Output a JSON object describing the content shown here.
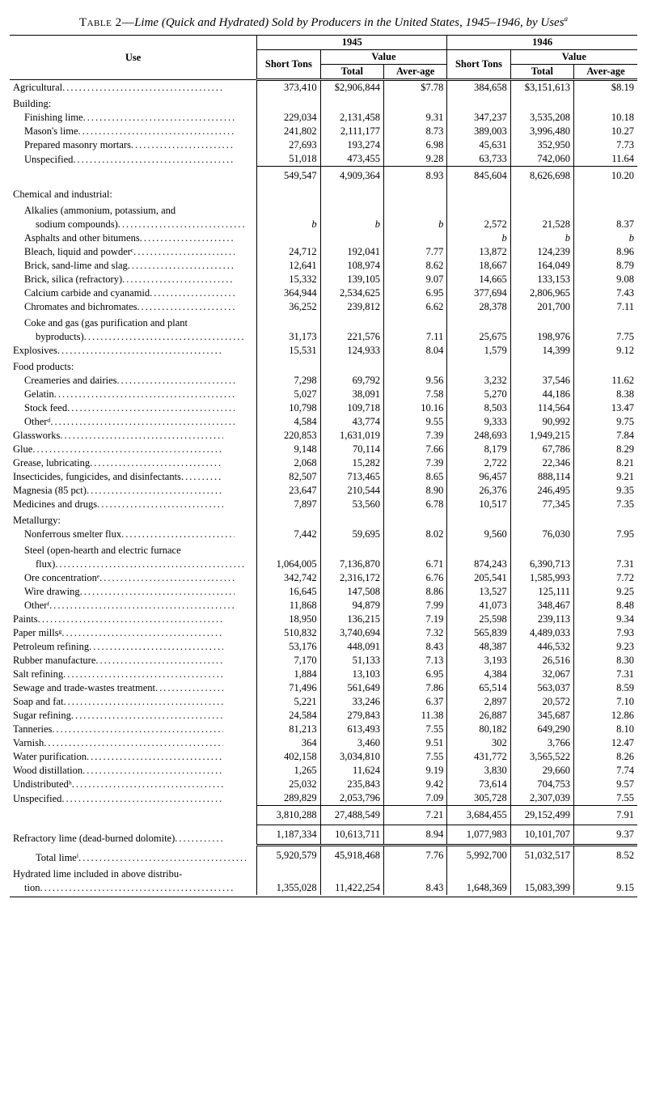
{
  "title": {
    "prefix": "Table 2—",
    "main": "Lime (Quick and Hydrated) Sold by Producers in the United States, 1945–1946, by Uses",
    "sup": "a"
  },
  "header": {
    "use": "Use",
    "y1945": "1945",
    "y1946": "1946",
    "short_tons": "Short Tons",
    "value": "Value",
    "total": "Total",
    "average": "Aver-age"
  },
  "rows": [
    {
      "label": "Agricultural",
      "indent": 0,
      "dots": true,
      "t45": "373,410",
      "v45": "$2,906,844",
      "a45": "$7.78",
      "t46": "384,658",
      "v46": "$3,151,613",
      "a46": "$8.19",
      "dtop": true
    },
    {
      "label": "Building:",
      "indent": 0,
      "dots": false,
      "head": true
    },
    {
      "label": "Finishing lime",
      "indent": 1,
      "dots": true,
      "t45": "229,034",
      "v45": "2,131,458",
      "a45": "9.31",
      "t46": "347,237",
      "v46": "3,535,208",
      "a46": "10.18"
    },
    {
      "label": "Mason's lime",
      "indent": 1,
      "dots": true,
      "t45": "241,802",
      "v45": "2,111,177",
      "a45": "8.73",
      "t46": "389,003",
      "v46": "3,996,480",
      "a46": "10.27"
    },
    {
      "label": "Prepared masonry mortars",
      "indent": 1,
      "dots": true,
      "t45": "27,693",
      "v45": "193,274",
      "a45": "6.98",
      "t46": "45,631",
      "v46": "352,950",
      "a46": "7.73"
    },
    {
      "label": "Unspecified",
      "indent": 1,
      "dots": true,
      "t45": "51,018",
      "v45": "473,455",
      "a45": "9.28",
      "t46": "63,733",
      "v46": "742,060",
      "a46": "11.64"
    },
    {
      "label": "",
      "indent": 0,
      "t45": "549,547",
      "v45": "4,909,364",
      "a45": "8.93",
      "t46": "845,604",
      "v46": "8,626,698",
      "a46": "10.20",
      "totline": true
    },
    {
      "label": "Chemical and industrial:",
      "indent": 0,
      "dots": false,
      "head": true
    },
    {
      "label": "Alkalies (ammonium, potassium, and",
      "indent": 1,
      "dots": false,
      "nowrap": false,
      "head": true
    },
    {
      "label": "sodium compounds)",
      "indent": 2,
      "dots": true,
      "t45": "b",
      "v45": "b",
      "a45": "b",
      "t46": "2,572",
      "v46": "21,528",
      "a46": "8.37",
      "fn45": true
    },
    {
      "label": "Asphalts and other bitumens",
      "indent": 1,
      "dots": true,
      "t45": "",
      "v45": "",
      "a45": "",
      "t46": "b",
      "v46": "b",
      "a46": "b",
      "fn46": true
    },
    {
      "label": "Bleach, liquid and powderᶜ",
      "indent": 1,
      "dots": true,
      "t45": "24,712",
      "v45": "192,041",
      "a45": "7.77",
      "t46": "13,872",
      "v46": "124,239",
      "a46": "8.96"
    },
    {
      "label": "Brick, sand-lime and slag",
      "indent": 1,
      "dots": true,
      "t45": "12,641",
      "v45": "108,974",
      "a45": "8.62",
      "t46": "18,667",
      "v46": "164,049",
      "a46": "8.79"
    },
    {
      "label": "Brick, silica (refractory)",
      "indent": 1,
      "dots": true,
      "t45": "15,332",
      "v45": "139,105",
      "a45": "9.07",
      "t46": "14,665",
      "v46": "133,153",
      "a46": "9.08"
    },
    {
      "label": "Calcium carbide and cyanamid",
      "indent": 1,
      "dots": true,
      "t45": "364,944",
      "v45": "2,534,625",
      "a45": "6.95",
      "t46": "377,694",
      "v46": "2,806,965",
      "a46": "7.43"
    },
    {
      "label": "Chromates and bichromates",
      "indent": 1,
      "dots": true,
      "t45": "36,252",
      "v45": "239,812",
      "a45": "6.62",
      "t46": "28,378",
      "v46": "201,700",
      "a46": "7.11"
    },
    {
      "label": "Coke and gas (gas purification and plant",
      "indent": 1,
      "dots": false,
      "head": true
    },
    {
      "label": "byproducts)",
      "indent": 2,
      "dots": true,
      "t45": "31,173",
      "v45": "221,576",
      "a45": "7.11",
      "t46": "25,675",
      "v46": "198,976",
      "a46": "7.75"
    },
    {
      "label": "Explosives",
      "indent": 0,
      "dots": true,
      "t45": "15,531",
      "v45": "124,933",
      "a45": "8.04",
      "t46": "1,579",
      "v46": "14,399",
      "a46": "9.12"
    },
    {
      "label": "Food products:",
      "indent": 0,
      "dots": false,
      "head": true
    },
    {
      "label": "Creameries and dairies",
      "indent": 1,
      "dots": true,
      "t45": "7,298",
      "v45": "69,792",
      "a45": "9.56",
      "t46": "3,232",
      "v46": "37,546",
      "a46": "11.62"
    },
    {
      "label": "Gelatin",
      "indent": 1,
      "dots": true,
      "t45": "5,027",
      "v45": "38,091",
      "a45": "7.58",
      "t46": "5,270",
      "v46": "44,186",
      "a46": "8.38"
    },
    {
      "label": "Stock feed",
      "indent": 1,
      "dots": true,
      "t45": "10,798",
      "v45": "109,718",
      "a45": "10.16",
      "t46": "8,503",
      "v46": "114,564",
      "a46": "13.47"
    },
    {
      "label": "Otherᵈ",
      "indent": 1,
      "dots": true,
      "t45": "4,584",
      "v45": "43,774",
      "a45": "9.55",
      "t46": "9,333",
      "v46": "90,992",
      "a46": "9.75"
    },
    {
      "label": "Glassworks",
      "indent": 0,
      "dots": true,
      "t45": "220,853",
      "v45": "1,631,019",
      "a45": "7.39",
      "t46": "248,693",
      "v46": "1,949,215",
      "a46": "7.84"
    },
    {
      "label": "Glue",
      "indent": 0,
      "dots": true,
      "t45": "9,148",
      "v45": "70,114",
      "a45": "7.66",
      "t46": "8,179",
      "v46": "67,786",
      "a46": "8.29"
    },
    {
      "label": "Grease, lubricating",
      "indent": 0,
      "dots": true,
      "t45": "2,068",
      "v45": "15,282",
      "a45": "7.39",
      "t46": "2,722",
      "v46": "22,346",
      "a46": "8.21"
    },
    {
      "label": "Insecticides, fungicides, and disinfectants",
      "indent": 0,
      "dots": true,
      "t45": "82,507",
      "v45": "713,465",
      "a45": "8.65",
      "t46": "96,457",
      "v46": "888,114",
      "a46": "9.21"
    },
    {
      "label": "Magnesia (85 pct)",
      "indent": 0,
      "dots": true,
      "t45": "23,647",
      "v45": "210,544",
      "a45": "8.90",
      "t46": "26,376",
      "v46": "246,495",
      "a46": "9.35"
    },
    {
      "label": "Medicines and drugs",
      "indent": 0,
      "dots": true,
      "t45": "7,897",
      "v45": "53,560",
      "a45": "6.78",
      "t46": "10,517",
      "v46": "77,345",
      "a46": "7.35"
    },
    {
      "label": "Metallurgy:",
      "indent": 0,
      "dots": false,
      "head": true
    },
    {
      "label": "Nonferrous smelter flux",
      "indent": 1,
      "dots": true,
      "t45": "7,442",
      "v45": "59,695",
      "a45": "8.02",
      "t46": "9,560",
      "v46": "76,030",
      "a46": "7.95"
    },
    {
      "label": "Steel (open-hearth and electric furnace",
      "indent": 1,
      "dots": false,
      "head": true
    },
    {
      "label": "flux)",
      "indent": 2,
      "dots": true,
      "t45": "1,064,005",
      "v45": "7,136,870",
      "a45": "6.71",
      "t46": "874,243",
      "v46": "6,390,713",
      "a46": "7.31"
    },
    {
      "label": "Ore concentrationᵉ",
      "indent": 1,
      "dots": true,
      "t45": "342,742",
      "v45": "2,316,172",
      "a45": "6.76",
      "t46": "205,541",
      "v46": "1,585,993",
      "a46": "7.72"
    },
    {
      "label": "Wire drawing",
      "indent": 1,
      "dots": true,
      "t45": "16,645",
      "v45": "147,508",
      "a45": "8.86",
      "t46": "13,527",
      "v46": "125,111",
      "a46": "9.25"
    },
    {
      "label": "Otherᶠ",
      "indent": 1,
      "dots": true,
      "t45": "11,868",
      "v45": "94,879",
      "a45": "7.99",
      "t46": "41,073",
      "v46": "348,467",
      "a46": "8.48"
    },
    {
      "label": "Paints",
      "indent": 0,
      "dots": true,
      "t45": "18,950",
      "v45": "136,215",
      "a45": "7.19",
      "t46": "25,598",
      "v46": "239,113",
      "a46": "9.34"
    },
    {
      "label": "Paper millsᵍ",
      "indent": 0,
      "dots": true,
      "t45": "510,832",
      "v45": "3,740,694",
      "a45": "7.32",
      "t46": "565,839",
      "v46": "4,489,033",
      "a46": "7.93"
    },
    {
      "label": "Petroleum refining",
      "indent": 0,
      "dots": true,
      "t45": "53,176",
      "v45": "448,091",
      "a45": "8.43",
      "t46": "48,387",
      "v46": "446,532",
      "a46": "9.23"
    },
    {
      "label": "Rubber manufacture",
      "indent": 0,
      "dots": true,
      "t45": "7,170",
      "v45": "51,133",
      "a45": "7.13",
      "t46": "3,193",
      "v46": "26,516",
      "a46": "8.30"
    },
    {
      "label": "Salt refining",
      "indent": 0,
      "dots": true,
      "t45": "1,884",
      "v45": "13,103",
      "a45": "6.95",
      "t46": "4,384",
      "v46": "32,067",
      "a46": "7.31"
    },
    {
      "label": "Sewage and trade-wastes treatment",
      "indent": 0,
      "dots": true,
      "t45": "71,496",
      "v45": "561,649",
      "a45": "7.86",
      "t46": "65,514",
      "v46": "563,037",
      "a46": "8.59"
    },
    {
      "label": "Soap and fat",
      "indent": 0,
      "dots": true,
      "t45": "5,221",
      "v45": "33,246",
      "a45": "6.37",
      "t46": "2,897",
      "v46": "20,572",
      "a46": "7.10"
    },
    {
      "label": "Sugar refining",
      "indent": 0,
      "dots": true,
      "t45": "24,584",
      "v45": "279,843",
      "a45": "11.38",
      "t46": "26,887",
      "v46": "345,687",
      "a46": "12.86"
    },
    {
      "label": "Tanneries",
      "indent": 0,
      "dots": true,
      "t45": "81,213",
      "v45": "613,493",
      "a45": "7.55",
      "t46": "80,182",
      "v46": "649,290",
      "a46": "8.10"
    },
    {
      "label": "Varnish",
      "indent": 0,
      "dots": true,
      "t45": "364",
      "v45": "3,460",
      "a45": "9.51",
      "t46": "302",
      "v46": "3,766",
      "a46": "12.47"
    },
    {
      "label": "Water purification",
      "indent": 0,
      "dots": true,
      "t45": "402,158",
      "v45": "3,034,810",
      "a45": "7.55",
      "t46": "431,772",
      "v46": "3,565,522",
      "a46": "8.26"
    },
    {
      "label": "Wood distillation",
      "indent": 0,
      "dots": true,
      "t45": "1,265",
      "v45": "11,624",
      "a45": "9.19",
      "t46": "3,830",
      "v46": "29,660",
      "a46": "7.74"
    },
    {
      "label": "Undistributedʰ",
      "indent": 0,
      "dots": true,
      "t45": "25,032",
      "v45": "235,843",
      "a45": "9.42",
      "t46": "73,614",
      "v46": "704,753",
      "a46": "9.57"
    },
    {
      "label": "Unspecified",
      "indent": 0,
      "dots": true,
      "t45": "289,829",
      "v45": "2,053,796",
      "a45": "7.09",
      "t46": "305,728",
      "v46": "2,307,039",
      "a46": "7.55"
    },
    {
      "label": "",
      "indent": 0,
      "t45": "3,810,288",
      "v45": "27,488,549",
      "a45": "7.21",
      "t46": "3,684,455",
      "v46": "29,152,499",
      "a46": "7.91",
      "totline": true
    },
    {
      "label": "Refractory lime (dead-burned dolomite)",
      "indent": 0,
      "dots": true,
      "t45": "1,187,334",
      "v45": "10,613,711",
      "a45": "8.94",
      "t46": "1,077,983",
      "v46": "10,101,707",
      "a46": "9.37",
      "totline": true
    },
    {
      "label": "Total limeⁱ",
      "indent": 2,
      "dots": true,
      "t45": "5,920,579",
      "v45": "45,918,468",
      "a45": "7.76",
      "t46": "5,992,700",
      "v46": "51,032,517",
      "a46": "8.52",
      "dtotline": true
    },
    {
      "label": "Hydrated lime included in above distribu-",
      "indent": 0,
      "dots": false,
      "head": true
    },
    {
      "label": "tion",
      "indent": 1,
      "dots": true,
      "t45": "1,355,028",
      "v45": "11,422,254",
      "a45": "8.43",
      "t46": "1,648,369",
      "v46": "15,083,399",
      "a46": "9.15"
    }
  ]
}
